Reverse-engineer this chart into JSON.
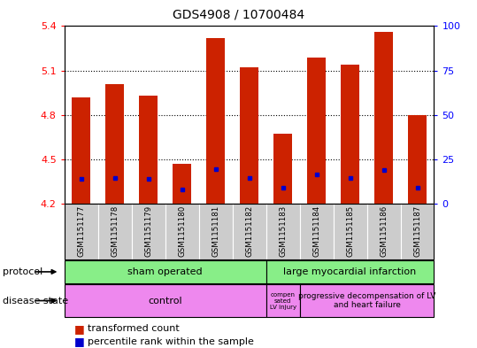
{
  "title": "GDS4908 / 10700484",
  "samples": [
    "GSM1151177",
    "GSM1151178",
    "GSM1151179",
    "GSM1151180",
    "GSM1151181",
    "GSM1151182",
    "GSM1151183",
    "GSM1151184",
    "GSM1151185",
    "GSM1151186",
    "GSM1151187"
  ],
  "bar_tops": [
    4.92,
    5.01,
    4.93,
    4.47,
    5.32,
    5.12,
    4.67,
    5.19,
    5.14,
    5.36,
    4.8
  ],
  "bar_bottom": 4.2,
  "percentile_values": [
    4.37,
    4.375,
    4.365,
    4.295,
    4.435,
    4.375,
    4.305,
    4.4,
    4.375,
    4.425,
    4.31
  ],
  "ylim_left": [
    4.2,
    5.4
  ],
  "ylim_right": [
    0,
    100
  ],
  "yticks_left": [
    4.2,
    4.5,
    4.8,
    5.1,
    5.4
  ],
  "yticks_right": [
    0,
    25,
    50,
    75,
    100
  ],
  "bar_color": "#cc2200",
  "percentile_color": "#0000cc",
  "bar_width": 0.55,
  "protocol_color": "#88ee88",
  "disease_color": "#ee88ee",
  "sample_bg_color": "#cccccc",
  "sham_count": 6,
  "ctrl_count": 6,
  "comp_count": 1,
  "prog_count": 4
}
